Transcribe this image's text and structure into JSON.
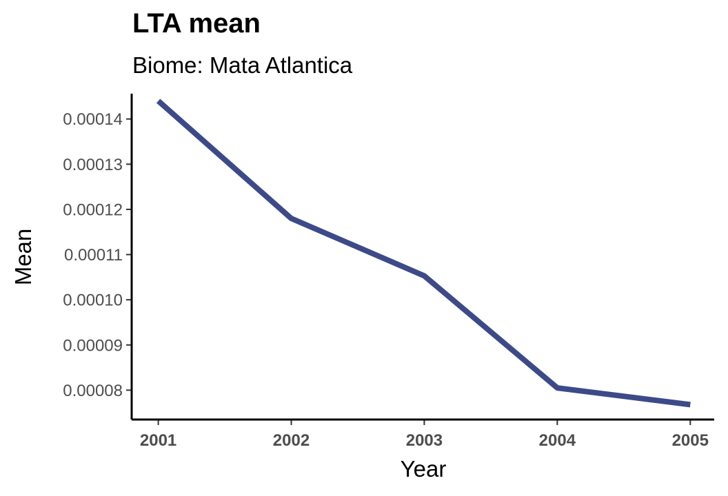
{
  "chart_data": {
    "type": "line",
    "title": "LTA mean",
    "subtitle": "Biome: Mata Atlantica",
    "xlabel": "Year",
    "ylabel": "Mean",
    "x": [
      2001,
      2002,
      2003,
      2004,
      2005
    ],
    "x_tick_labels": [
      "2001",
      "2002",
      "2003",
      "2004",
      "2005"
    ],
    "y_tick_labels": [
      "0.00008",
      "0.00009",
      "0.00010",
      "0.00011",
      "0.00012",
      "0.00013",
      "0.00014"
    ],
    "y_ticks": [
      8e-05,
      9e-05,
      0.0001,
      0.00011,
      0.00012,
      0.00013,
      0.00014
    ],
    "series": [
      {
        "values": [
          0.000144,
          0.000118,
          0.0001053,
          8.05e-05,
          7.68e-05
        ],
        "color": "#3d4a89"
      }
    ],
    "xlim": [
      2000.8,
      2005.18
    ],
    "ylim": [
      7.35e-05,
      0.0001456
    ],
    "grid": false,
    "legend": "none"
  }
}
